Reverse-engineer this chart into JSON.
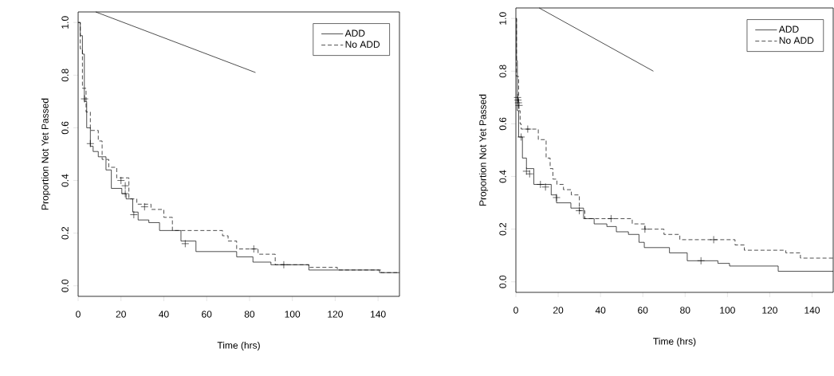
{
  "chart_data": [
    {
      "type": "step",
      "xlabel": "Time (hrs)",
      "ylabel": "Proportion Not Yet Passed",
      "xlim": [
        0,
        150
      ],
      "ylim": [
        -0.04,
        1.04
      ],
      "xticks": [
        0,
        20,
        40,
        60,
        80,
        100,
        120,
        140
      ],
      "yticks": [
        {
          "value": 0,
          "label": "0.0"
        },
        {
          "value": 0.2,
          "label": "0.2"
        },
        {
          "value": 0.4,
          "label": "0.4"
        },
        {
          "value": 0.6,
          "label": "0.6"
        },
        {
          "value": 0.8,
          "label": "0.8"
        },
        {
          "value": 1,
          "label": "1.0"
        }
      ],
      "legend": "top right",
      "grid": false,
      "series": [
        {
          "name": "ADD",
          "color": "#000000",
          "line_style": "solid",
          "x": [
            0,
            1,
            2,
            2.9,
            4,
            5.7,
            7,
            9.4,
            13,
            15.5,
            20.4,
            22.4,
            25.5,
            28,
            33,
            38,
            48,
            55,
            74,
            81.6,
            90,
            107.7,
            140.7,
            150
          ],
          "values": [
            1.0,
            0.95,
            0.88,
            0.7,
            0.6,
            0.53,
            0.51,
            0.49,
            0.44,
            0.37,
            0.35,
            0.33,
            0.28,
            0.25,
            0.24,
            0.21,
            0.17,
            0.13,
            0.11,
            0.09,
            0.08,
            0.06,
            0.05,
            0.05
          ]
        },
        {
          "name": "No ADD",
          "color": "#000000",
          "line_style": "dashed",
          "x": [
            0,
            1,
            2,
            3.7,
            5.7,
            9.4,
            11.2,
            14.3,
            18,
            23.7,
            27.4,
            34,
            40,
            44,
            67.4,
            70,
            74,
            84,
            92,
            107.7,
            121,
            141.5,
            150
          ],
          "values": [
            1.0,
            0.9,
            0.75,
            0.66,
            0.59,
            0.55,
            0.48,
            0.45,
            0.41,
            0.33,
            0.31,
            0.29,
            0.26,
            0.21,
            0.19,
            0.17,
            0.14,
            0.12,
            0.08,
            0.07,
            0.06,
            0.05,
            0.05
          ]
        },
        {
          "type": "scatter",
          "marker": "cross",
          "color": "#000000",
          "x": [
            3,
            5.7,
            22,
            26,
            50
          ],
          "values": [
            0.71,
            0.54,
            0.35,
            0.27,
            0.16
          ]
        },
        {
          "type": "scatter",
          "marker": "cross",
          "color": "#000000",
          "x": [
            20,
            22,
            31,
            82,
            96
          ],
          "values": [
            0.4,
            0.38,
            0.3,
            0.14,
            0.08
          ]
        },
        {
          "type": "line",
          "color": "#000000",
          "line_style": "solid",
          "x": [
            8.2,
            82.8
          ],
          "values": [
            1.04,
            0.81
          ]
        }
      ]
    },
    {
      "type": "step",
      "xlabel": "Time (hrs)",
      "ylabel": "Proportion Not Yet Passed",
      "xlim": [
        0,
        150
      ],
      "ylim": [
        -0.04,
        1.04
      ],
      "xticks": [
        0,
        20,
        40,
        60,
        80,
        100,
        120,
        140
      ],
      "yticks": [
        {
          "value": 0,
          "label": "0.0"
        },
        {
          "value": 0.2,
          "label": "0.2"
        },
        {
          "value": 0.4,
          "label": "0.4"
        },
        {
          "value": 0.6,
          "label": "0.6"
        },
        {
          "value": 0.8,
          "label": "0.8"
        },
        {
          "value": 1,
          "label": "1.0"
        }
      ],
      "legend": "top right",
      "grid": false,
      "series": [
        {
          "name": "ADD",
          "color": "#000000",
          "line_style": "solid",
          "x": [
            0,
            0.3,
            0.7,
            1.3,
            3.1,
            5,
            8.5,
            16.7,
            19.2,
            26,
            32,
            37,
            43,
            47.5,
            53.2,
            58.2,
            60.7,
            72.6,
            81,
            95.5,
            101,
            124,
            150
          ],
          "values": [
            1.0,
            0.84,
            0.65,
            0.55,
            0.47,
            0.43,
            0.37,
            0.33,
            0.3,
            0.28,
            0.24,
            0.22,
            0.21,
            0.19,
            0.18,
            0.15,
            0.13,
            0.11,
            0.08,
            0.07,
            0.06,
            0.04,
            0.04
          ]
        },
        {
          "name": "No ADD",
          "color": "#000000",
          "line_style": "dashed",
          "x": [
            0,
            0.3,
            1.3,
            2,
            2.5,
            10.6,
            14.3,
            16.2,
            17.5,
            19.4,
            22.5,
            26.2,
            30,
            32.6,
            55,
            61,
            70,
            77.5,
            103.6,
            108,
            127.6,
            134.5,
            150
          ],
          "values": [
            1.0,
            0.78,
            0.65,
            0.6,
            0.58,
            0.54,
            0.47,
            0.43,
            0.39,
            0.37,
            0.35,
            0.33,
            0.27,
            0.24,
            0.22,
            0.2,
            0.18,
            0.16,
            0.14,
            0.12,
            0.11,
            0.09,
            0.09
          ]
        },
        {
          "type": "scatter",
          "marker": "cross",
          "color": "#000000",
          "x": [
            1,
            1.5,
            2.5,
            5,
            6.5,
            11.6,
            14,
            19.2,
            30,
            87.5
          ],
          "values": [
            0.69,
            0.67,
            0.55,
            0.42,
            0.41,
            0.37,
            0.36,
            0.32,
            0.27,
            0.08
          ]
        },
        {
          "type": "scatter",
          "marker": "cross",
          "color": "#000000",
          "x": [
            0.8,
            1.2,
            5.6,
            45,
            61,
            93.5
          ],
          "values": [
            0.7,
            0.68,
            0.58,
            0.24,
            0.2,
            0.16
          ]
        },
        {
          "type": "line",
          "color": "#000000",
          "line_style": "solid",
          "x": [
            11,
            65
          ],
          "values": [
            1.04,
            0.8
          ]
        }
      ]
    }
  ]
}
